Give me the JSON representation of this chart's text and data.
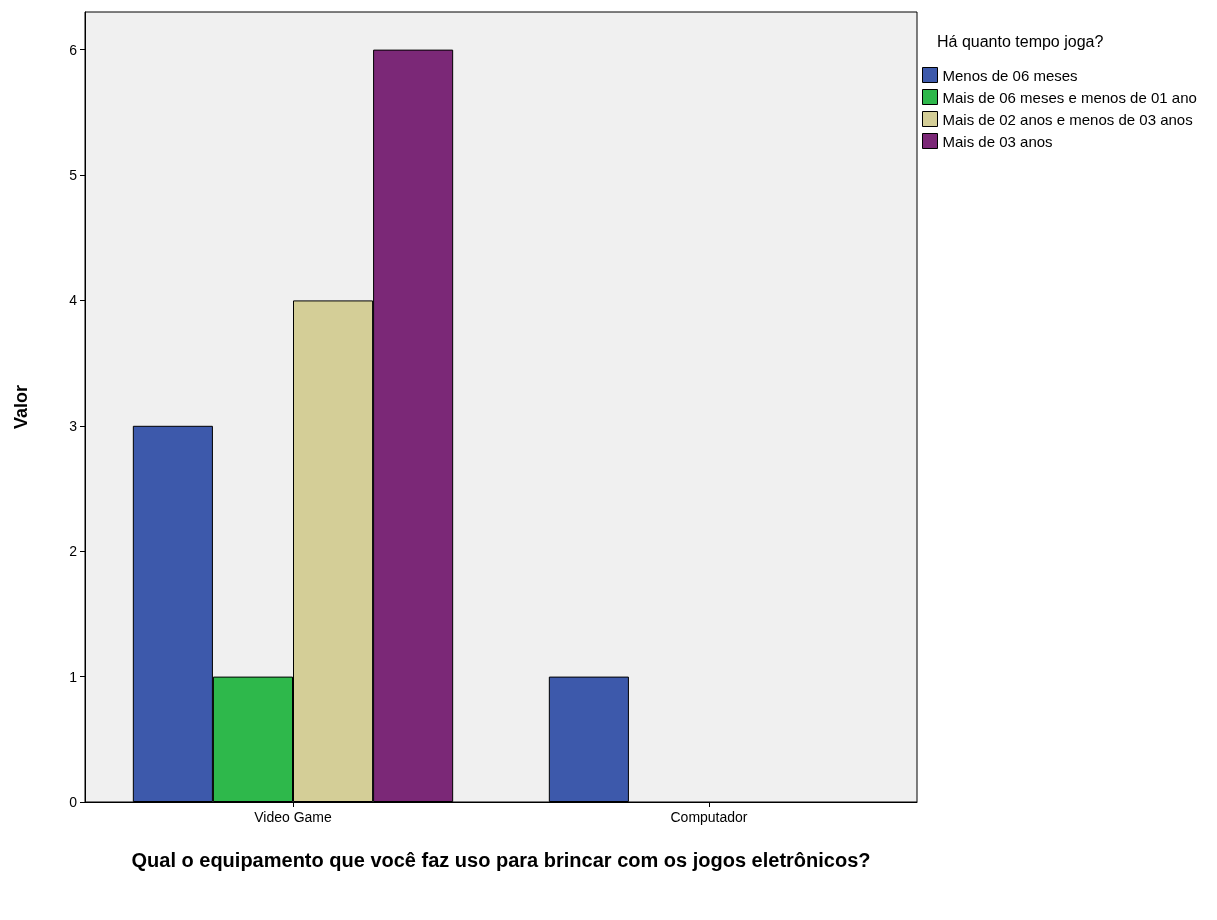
{
  "chart_data": {
    "type": "bar",
    "xlabel": "Qual o equipamento que você faz uso para brincar com os jogos eletrônicos?",
    "ylabel": "Valor",
    "legend_title": "Há quanto tempo joga?",
    "categories": [
      "Video Game",
      "Computador"
    ],
    "series": [
      {
        "name": "Menos de 06 meses",
        "color": "#3d59ab",
        "values": [
          3,
          1
        ]
      },
      {
        "name": "Mais de 06 meses e menos de 01 ano",
        "color": "#2eb84b",
        "values": [
          1,
          null
        ]
      },
      {
        "name": "Mais de 02 anos e menos de 03 anos",
        "color": "#d4ce97",
        "values": [
          4,
          null
        ]
      },
      {
        "name": "Mais de 03 anos",
        "color": "#7b2877",
        "values": [
          6,
          null
        ]
      }
    ],
    "ylim": [
      0,
      6.3
    ],
    "yticks": [
      0,
      1,
      2,
      3,
      4,
      5,
      6
    ],
    "grid": false,
    "legend": "top right"
  }
}
